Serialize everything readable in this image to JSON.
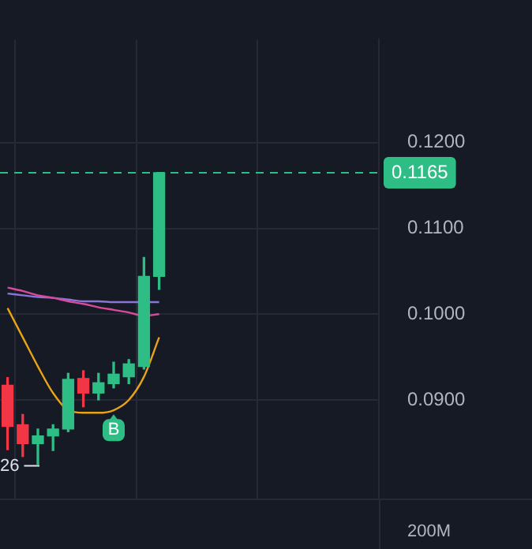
{
  "chart_data": {
    "type": "candlestick",
    "categories": [
      null,
      null,
      null,
      null,
      null,
      null,
      null,
      null,
      null,
      null,
      null,
      null,
      null,
      null,
      null,
      null,
      null,
      null,
      null,
      null,
      null,
      null,
      null,
      null,
      null
    ],
    "ohlc": [
      [
        0.0917,
        0.0926,
        0.0842,
        0.0869
      ],
      [
        0.0871,
        0.0883,
        0.0834,
        0.0849
      ],
      [
        0.0849,
        0.0866,
        0.0825,
        0.0858
      ],
      [
        0.0858,
        0.0871,
        0.0841,
        0.0866
      ],
      [
        0.0866,
        0.0931,
        0.0863,
        0.0924
      ],
      [
        0.0925,
        0.0934,
        0.0892,
        0.0908
      ],
      [
        0.0908,
        0.0931,
        0.09,
        0.092
      ],
      [
        0.0919,
        0.0944,
        0.0914,
        0.093
      ],
      [
        0.0927,
        0.0947,
        0.0919,
        0.0942
      ],
      [
        0.0939,
        0.1066,
        0.0936,
        0.1044
      ],
      [
        0.1044,
        0.1165,
        0.1029,
        0.1165
      ],
      null,
      null,
      null,
      null,
      null,
      null,
      null,
      null,
      null,
      null,
      null,
      null,
      null,
      null
    ],
    "colors": [
      "#f23645",
      "#f23645",
      "#2ebd85",
      "#2ebd85",
      "#2ebd85",
      "#f23645",
      "#2ebd85",
      "#2ebd85",
      "#2ebd85",
      "#2ebd85",
      "#2ebd85",
      null,
      null,
      null,
      null,
      null,
      null,
      null,
      null,
      null,
      null,
      null,
      null,
      null,
      null
    ],
    "series": [
      {
        "type": "line",
        "color": "#e8a317",
        "values": [
          0.1007,
          0.0973,
          0.0939,
          0.0908,
          0.0888,
          0.0885,
          0.0885,
          0.0888,
          0.09,
          0.0927,
          0.0973,
          null,
          null,
          null,
          null,
          null,
          null,
          null,
          null,
          null,
          null,
          null,
          null,
          null,
          null
        ]
      },
      {
        "type": "line",
        "color": "#d94a9c",
        "values": [
          0.1031,
          0.1027,
          0.1022,
          0.1019,
          0.1015,
          0.1012,
          0.1008,
          0.1005,
          0.1002,
          0.0998,
          0.1,
          null,
          null,
          null,
          null,
          null,
          null,
          null,
          null,
          null,
          null,
          null,
          null,
          null,
          null
        ]
      },
      {
        "type": "line",
        "color": "#8a74d8",
        "values": [
          0.1024,
          0.1022,
          0.102,
          0.1019,
          0.1017,
          0.1015,
          0.1015,
          0.1014,
          0.1014,
          0.1014,
          0.1014,
          null,
          null,
          null,
          null,
          null,
          null,
          null,
          null,
          null,
          null,
          null,
          null,
          null,
          null
        ]
      }
    ],
    "ylim": [
      0.0785,
      0.132
    ],
    "yticks": [
      {
        "value": 0.09,
        "label": "0.0900"
      },
      {
        "value": 0.1,
        "label": "0.1000"
      },
      {
        "value": 0.11,
        "label": "0.1100"
      },
      {
        "value": 0.12,
        "label": "0.1200"
      }
    ],
    "ref_lines": [
      {
        "axis": "y",
        "value": 0.1165,
        "label": "0.1165",
        "color": "#2ebd85",
        "line_style": "dashed"
      }
    ],
    "annotations": [
      "26",
      "B",
      "200M"
    ],
    "grid": true,
    "tick_labels": "y",
    "legend": false,
    "marker": "none"
  }
}
